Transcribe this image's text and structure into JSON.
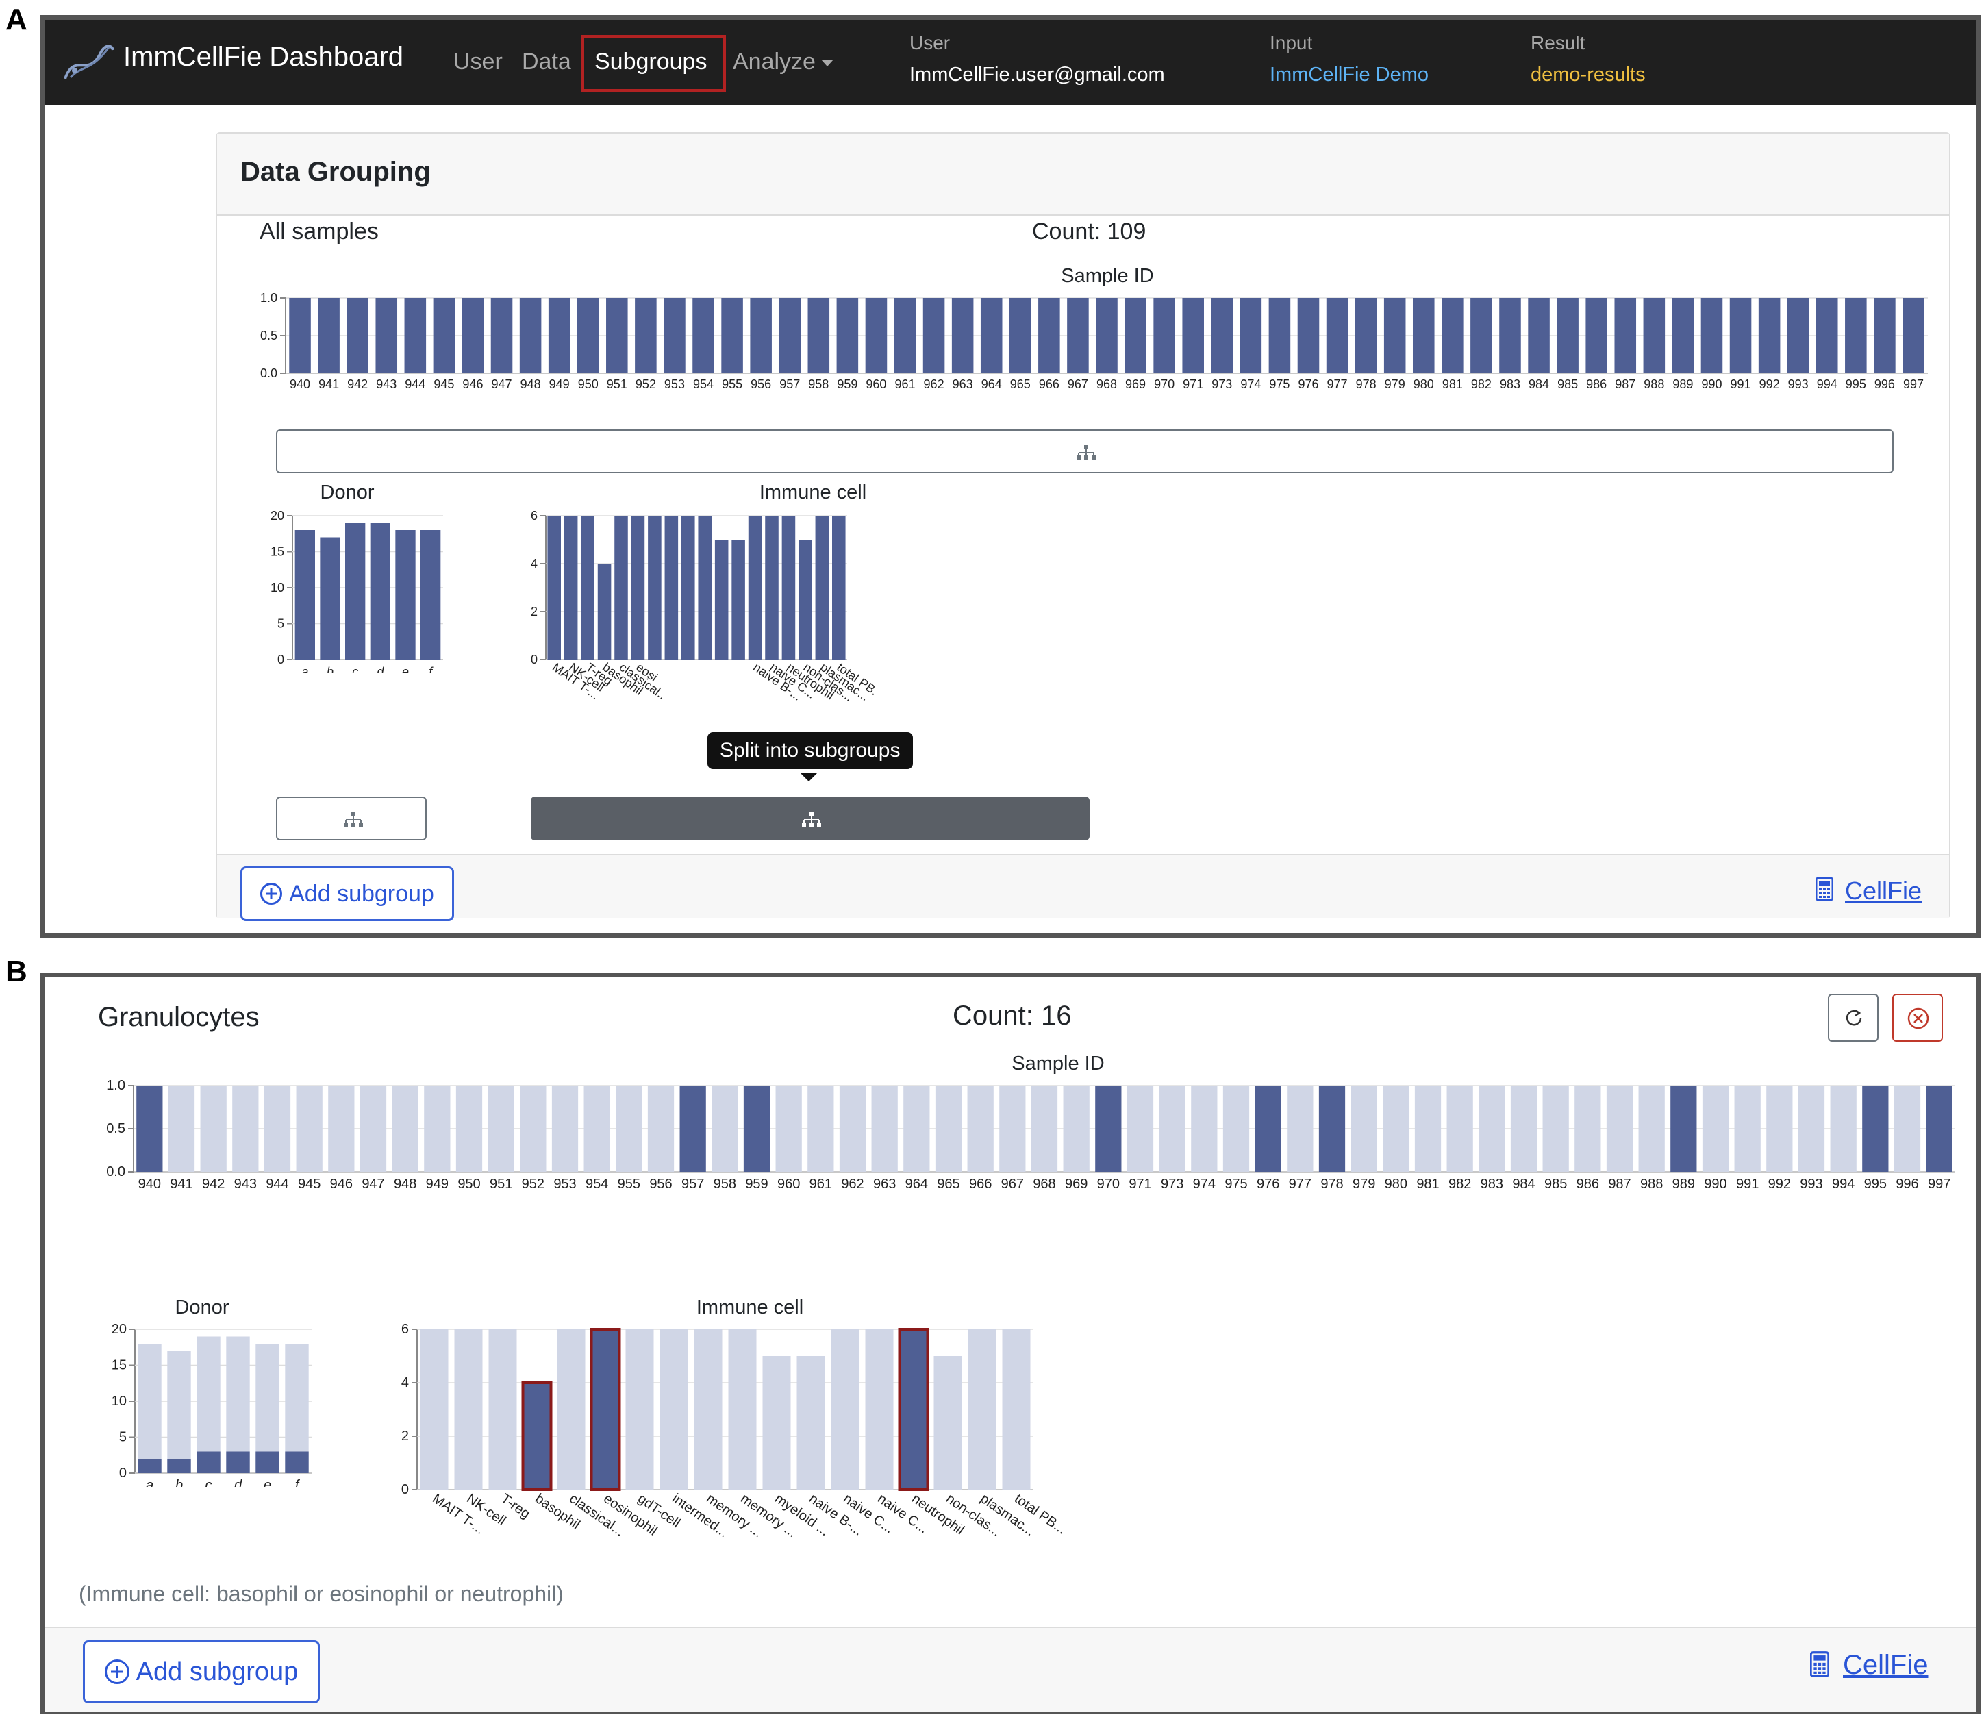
{
  "panel_a": {
    "letter": "A",
    "navbar": {
      "brand": "ImmCellFie Dashboard",
      "links": [
        "User",
        "Data",
        "Subgroups",
        "Analyze"
      ],
      "active": "Subgroups",
      "user_label": "User",
      "user_value": "ImmCellFie.user@gmail.com",
      "input_label": "Input",
      "input_value": "ImmCellFie Demo",
      "result_label": "Result",
      "result_value": "demo-results",
      "colors": {
        "bg": "#1f1f1f",
        "input": "#5db3f5",
        "result": "#f0c040",
        "active_box": "#b22222"
      }
    },
    "card": {
      "title": "Data Grouping",
      "group_name": "All samples",
      "count": "Count: 109",
      "sample_chart_title": "Sample ID",
      "donor_chart_title": "Donor",
      "immune_chart_title": "Immune cell",
      "tooltip": "Split into subgroups",
      "add_subgroup": "Add subgroup",
      "cellfie": "CellFie"
    }
  },
  "panel_b": {
    "letter": "B",
    "group_name": "Granulocytes",
    "count": "Count: 16",
    "sample_chart_title": "Sample ID",
    "donor_chart_title": "Donor",
    "immune_chart_title": "Immune cell",
    "filter_note": "(Immune cell: basophil or eosinophil or neutrophil)",
    "add_subgroup": "Add subgroup",
    "cellfie": "CellFie",
    "icons": {
      "reset": "reset-icon",
      "close": "close-circle-icon"
    }
  },
  "chart_data": [
    {
      "id": "a_sample",
      "type": "bar",
      "title": "Sample ID",
      "categories": [
        "940",
        "941",
        "942",
        "943",
        "944",
        "945",
        "946",
        "947",
        "948",
        "949",
        "950",
        "951",
        "952",
        "953",
        "954",
        "955",
        "956",
        "957",
        "958",
        "959",
        "960",
        "961",
        "962",
        "963",
        "964",
        "965",
        "966",
        "967",
        "968",
        "969",
        "970",
        "971",
        "973",
        "974",
        "975",
        "976",
        "977",
        "978",
        "979",
        "980",
        "981",
        "982",
        "983",
        "984",
        "985",
        "986",
        "987",
        "988",
        "989",
        "990",
        "991",
        "992",
        "993",
        "994",
        "995",
        "996",
        "997"
      ],
      "values": [
        1,
        1,
        1,
        1,
        1,
        1,
        1,
        1,
        1,
        1,
        1,
        1,
        1,
        1,
        1,
        1,
        1,
        1,
        1,
        1,
        1,
        1,
        1,
        1,
        1,
        1,
        1,
        1,
        1,
        1,
        1,
        1,
        1,
        1,
        1,
        1,
        1,
        1,
        1,
        1,
        1,
        1,
        1,
        1,
        1,
        1,
        1,
        1,
        1,
        1,
        1,
        1,
        1,
        1,
        1,
        1,
        1
      ],
      "ylim": [
        0,
        1
      ],
      "yticks": [
        "0.0",
        "0.5",
        "1.0"
      ],
      "grid": true,
      "color": "#4f5f94"
    },
    {
      "id": "a_donor",
      "type": "bar",
      "title": "Donor",
      "categories": [
        "a",
        "b",
        "c",
        "d",
        "e",
        "f"
      ],
      "values": [
        18,
        17,
        19,
        19,
        18,
        18
      ],
      "ylim": [
        0,
        20
      ],
      "yticks": [
        "0",
        "5",
        "10",
        "15",
        "20"
      ],
      "grid": true,
      "color": "#4f5f94"
    },
    {
      "id": "a_immune",
      "type": "bar",
      "title": "Immune cell",
      "categories": [
        "MAIT T-...",
        "NK-cell",
        "T-reg",
        "basophil",
        "classical...",
        "eosinophil",
        "gdT-cell",
        "intermed...",
        "memory ...",
        "memory ...",
        "myeloid ...",
        "naive B-...",
        "naive C...",
        "naive C...",
        "neutrophil",
        "non-clas...",
        "plasmac...",
        "total PB..."
      ],
      "tick_labels_visible": [
        "MAIT T-...",
        "NK-cell",
        "T-reg",
        "basophil",
        "classical..",
        "eosi",
        "",
        "",
        "",
        "",
        "",
        "",
        "naive B-...",
        "naive C...",
        "neutrophil",
        "non-clas...",
        "plasmac...",
        "total PB..."
      ],
      "values": [
        6,
        6,
        6,
        4,
        6,
        6,
        6,
        6,
        6,
        6,
        5,
        5,
        6,
        6,
        6,
        5,
        6,
        6
      ],
      "ylim": [
        0,
        6
      ],
      "yticks": [
        "0",
        "2",
        "4",
        "6"
      ],
      "grid": true,
      "color": "#4f5f94"
    },
    {
      "id": "b_sample",
      "type": "bar",
      "title": "Sample ID",
      "categories": [
        "940",
        "941",
        "942",
        "943",
        "944",
        "945",
        "946",
        "947",
        "948",
        "949",
        "950",
        "951",
        "952",
        "953",
        "954",
        "955",
        "956",
        "957",
        "958",
        "959",
        "960",
        "961",
        "962",
        "963",
        "964",
        "965",
        "966",
        "967",
        "968",
        "969",
        "970",
        "971",
        "973",
        "974",
        "975",
        "976",
        "977",
        "978",
        "979",
        "980",
        "981",
        "982",
        "983",
        "984",
        "985",
        "986",
        "987",
        "988",
        "989",
        "990",
        "991",
        "992",
        "993",
        "994",
        "995",
        "996",
        "997"
      ],
      "values": [
        1,
        1,
        1,
        1,
        1,
        1,
        1,
        1,
        1,
        1,
        1,
        1,
        1,
        1,
        1,
        1,
        1,
        1,
        1,
        1,
        1,
        1,
        1,
        1,
        1,
        1,
        1,
        1,
        1,
        1,
        1,
        1,
        1,
        1,
        1,
        1,
        1,
        1,
        1,
        1,
        1,
        1,
        1,
        1,
        1,
        1,
        1,
        1,
        1,
        1,
        1,
        1,
        1,
        1,
        1,
        1,
        1
      ],
      "selected": [
        "940",
        "957",
        "959",
        "970",
        "976",
        "978",
        "989",
        "995",
        "997"
      ],
      "ylim": [
        0,
        1
      ],
      "yticks": [
        "0.0",
        "0.5",
        "1.0"
      ],
      "grid": true,
      "color": "#4f5f94",
      "unselected_color": "#d0d6e6"
    },
    {
      "id": "b_donor",
      "type": "bar",
      "title": "Donor",
      "categories": [
        "a",
        "b",
        "c",
        "d",
        "e",
        "f"
      ],
      "series": [
        {
          "values": [
            18,
            17,
            19,
            19,
            18,
            18
          ]
        },
        {
          "values": [
            2,
            2,
            3,
            3,
            3,
            3
          ]
        }
      ],
      "ylim": [
        0,
        20
      ],
      "yticks": [
        "0",
        "5",
        "10",
        "15",
        "20"
      ],
      "grid": true,
      "color": "#4f5f94",
      "unselected_color": "#d0d6e6"
    },
    {
      "id": "b_immune",
      "type": "bar",
      "title": "Immune cell",
      "categories": [
        "MAIT T-...",
        "NK-cell",
        "T-reg",
        "basophil",
        "classical...",
        "eosinophil",
        "gdT-cell",
        "intermed...",
        "memory ...",
        "memory ...",
        "myeloid ...",
        "naive B-...",
        "naive C...",
        "naive C...",
        "neutrophil",
        "non-clas...",
        "plasmac...",
        "total PB..."
      ],
      "values": [
        6,
        6,
        6,
        4,
        6,
        6,
        6,
        6,
        6,
        6,
        5,
        5,
        6,
        6,
        6,
        5,
        6,
        6
      ],
      "selected": [
        "basophil",
        "eosinophil",
        "neutrophil"
      ],
      "ylim": [
        0,
        6
      ],
      "yticks": [
        "0",
        "2",
        "4",
        "6"
      ],
      "grid": true,
      "color": "#4f5f94",
      "unselected_color": "#d0d6e6",
      "highlight_border": "#8b1a1a"
    }
  ]
}
